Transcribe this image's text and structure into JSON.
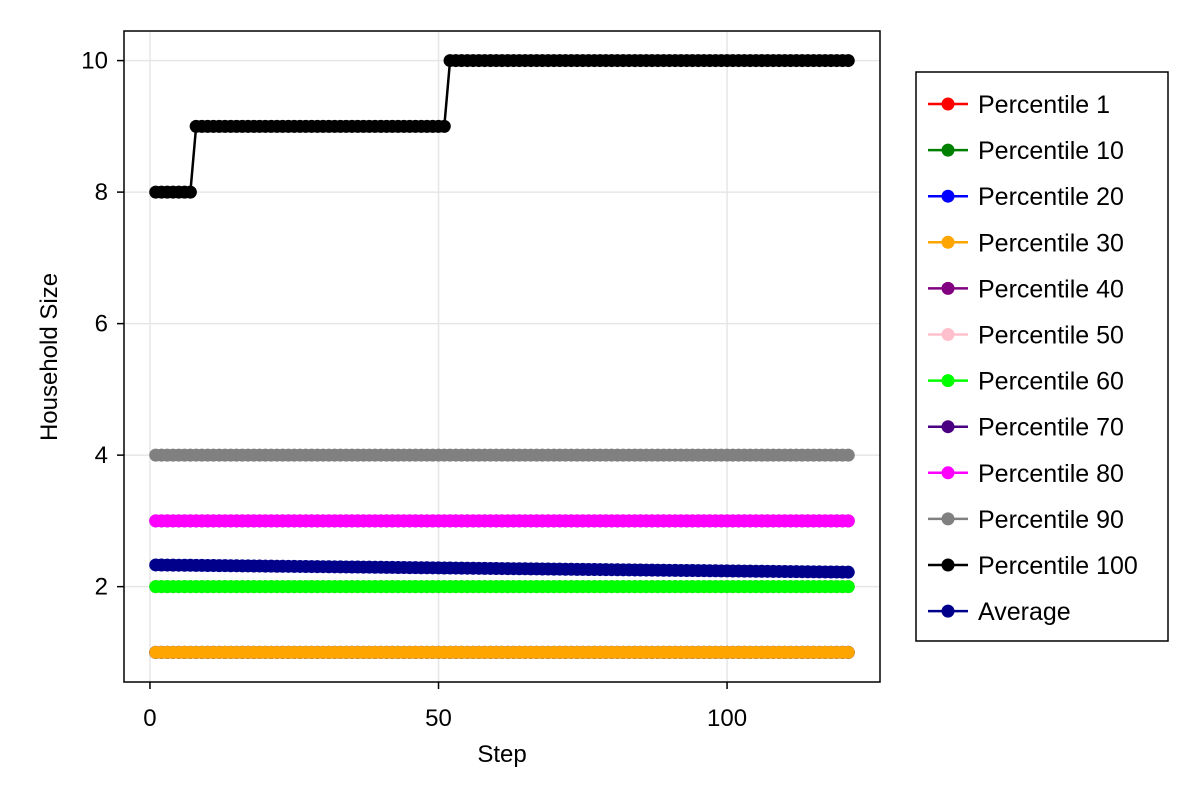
{
  "chart_data": {
    "type": "line",
    "title": "",
    "xlabel": "Step",
    "ylabel": "Household Size",
    "xlim": [
      -4.5,
      126.5
    ],
    "ylim": [
      0.55,
      10.45
    ],
    "xticks": [
      0,
      50,
      100
    ],
    "yticks": [
      2,
      4,
      6,
      8,
      10
    ],
    "grid": true,
    "legend_position": "right",
    "x": {
      "start": 1,
      "end": 121,
      "step": 1
    },
    "series": [
      {
        "name": "Percentile 1",
        "color": "#ff0000",
        "segments": [
          {
            "from": 1,
            "to": 121,
            "value": 1
          }
        ]
      },
      {
        "name": "Percentile 10",
        "color": "#008000",
        "segments": [
          {
            "from": 1,
            "to": 121,
            "value": 1
          }
        ]
      },
      {
        "name": "Percentile 20",
        "color": "#0000ff",
        "segments": [
          {
            "from": 1,
            "to": 121,
            "value": 1
          }
        ]
      },
      {
        "name": "Percentile 30",
        "color": "#ffa500",
        "segments": [
          {
            "from": 1,
            "to": 121,
            "value": 1
          }
        ]
      },
      {
        "name": "Percentile 40",
        "color": "#800080",
        "segments": [
          {
            "from": 1,
            "to": 121,
            "value": 2
          }
        ]
      },
      {
        "name": "Percentile 50",
        "color": "#ffc0cb",
        "segments": [
          {
            "from": 1,
            "to": 121,
            "value": 2
          }
        ]
      },
      {
        "name": "Percentile 60",
        "color": "#00ff00",
        "segments": [
          {
            "from": 1,
            "to": 121,
            "value": 2
          }
        ]
      },
      {
        "name": "Percentile 70",
        "color": "#4b0082",
        "segments": [
          {
            "from": 1,
            "to": 121,
            "value": 3
          }
        ]
      },
      {
        "name": "Percentile 80",
        "color": "#ff00ff",
        "segments": [
          {
            "from": 1,
            "to": 121,
            "value": 3
          }
        ]
      },
      {
        "name": "Percentile 90",
        "color": "#808080",
        "segments": [
          {
            "from": 1,
            "to": 121,
            "value": 4
          }
        ]
      },
      {
        "name": "Percentile 100",
        "color": "#000000",
        "segments": [
          {
            "from": 1,
            "to": 7,
            "value": 8
          },
          {
            "from": 8,
            "to": 51,
            "value": 9
          },
          {
            "from": 52,
            "to": 121,
            "value": 10
          }
        ]
      },
      {
        "name": "Average",
        "color": "#00008b",
        "linear": {
          "from": 1,
          "to": 121,
          "start": 2.33,
          "end": 2.22
        }
      }
    ]
  }
}
